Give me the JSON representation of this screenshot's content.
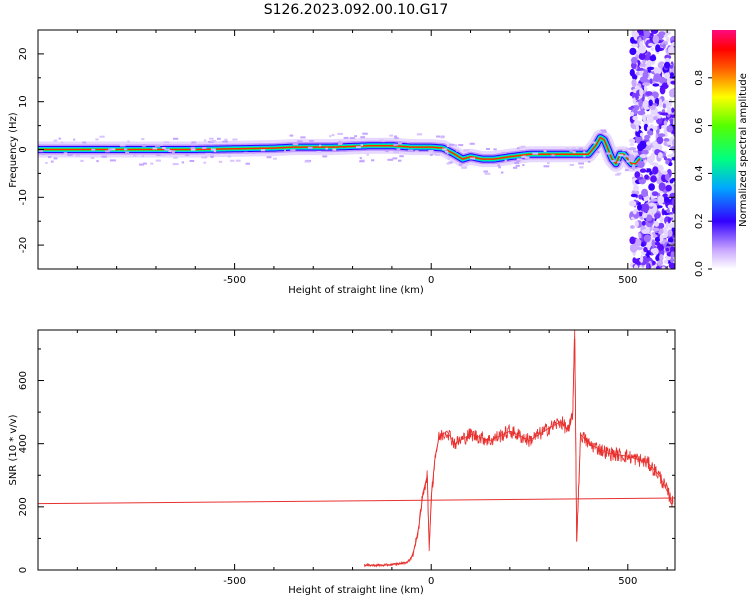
{
  "title": "S126.2023.092.00.10.G17",
  "chart_data": [
    {
      "type": "heatmap",
      "xlabel": "Height of straight line (km)",
      "ylabel": "Frequency (Hz)",
      "xlim": [
        -1000,
        620
      ],
      "ylim": [
        -25,
        25
      ],
      "xticks": [
        -500,
        0,
        500
      ],
      "yticks": [
        -20,
        -10,
        0,
        10,
        20
      ],
      "colorbar": {
        "label": "Normalized spectral amplitude",
        "range": [
          0,
          1
        ],
        "ticks": [
          0.0,
          0.2,
          0.4,
          0.6,
          0.8
        ]
      },
      "ridge": {
        "x": [
          -1000,
          -800,
          -600,
          -400,
          -350,
          -250,
          -150,
          -100,
          -50,
          0,
          30,
          60,
          80,
          100,
          130,
          160,
          200,
          250,
          300,
          330,
          370,
          400,
          420,
          430,
          440,
          450,
          460,
          470,
          480,
          490,
          500,
          510,
          520,
          530
        ],
        "frequency": [
          0,
          0,
          0,
          0.3,
          0.5,
          0.5,
          0.8,
          0.8,
          0.5,
          0.5,
          0.3,
          -1,
          -2,
          -1.5,
          -2,
          -2,
          -1.5,
          -1,
          -1,
          -1,
          -1,
          -1,
          1,
          2.5,
          2,
          0,
          -2,
          -3,
          -1,
          -1,
          -2,
          -3,
          -3,
          -2
        ]
      },
      "noise_region_start_km": 500
    },
    {
      "type": "line",
      "xlabel": "Height of straight line (km)",
      "ylabel": "SNR (10 * v/v)",
      "xlim": [
        -1000,
        620
      ],
      "ylim": [
        0,
        760
      ],
      "xticks": [
        -500,
        0,
        500
      ],
      "yticks": [
        0,
        200,
        400,
        600
      ],
      "color": "#e8312f",
      "reference_line": {
        "x": [
          -1000,
          620
        ],
        "y": [
          210,
          228
        ]
      },
      "series": {
        "x": [
          -170,
          -120,
          -80,
          -60,
          -50,
          -40,
          -30,
          -20,
          -10,
          -5,
          0,
          10,
          20,
          40,
          60,
          100,
          150,
          200,
          250,
          300,
          330,
          350,
          360,
          365,
          370,
          380,
          400,
          450,
          500,
          550,
          580,
          600,
          615
        ],
        "y": [
          15,
          15,
          20,
          25,
          40,
          80,
          150,
          250,
          300,
          60,
          230,
          360,
          420,
          440,
          400,
          430,
          410,
          440,
          410,
          450,
          470,
          440,
          500,
          760,
          90,
          430,
          400,
          370,
          360,
          340,
          300,
          250,
          210
        ]
      }
    }
  ]
}
